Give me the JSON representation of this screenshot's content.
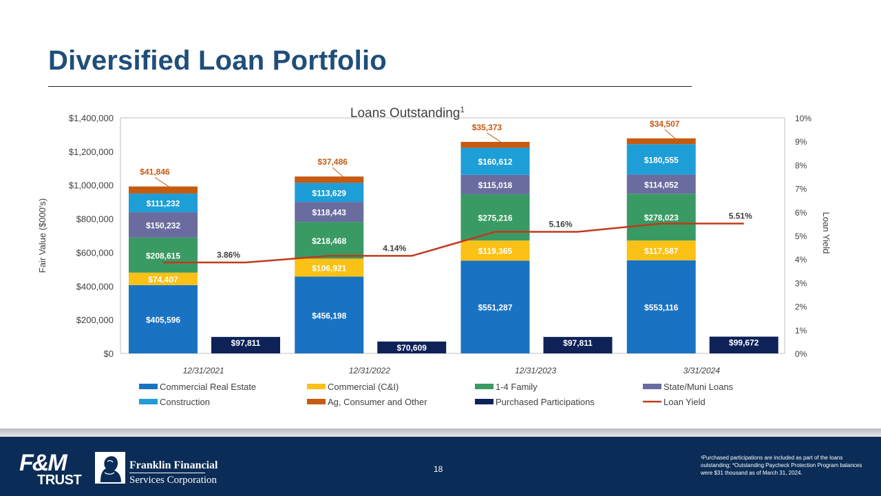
{
  "title": "Diversified Loan Portfolio",
  "page_number": "18",
  "footnote": "¹Purchased participations are included as part of the loans outstanding; *Outstanding Paycheck Protection Program balances were $31 thousand as of March 31, 2024.",
  "logo": {
    "fm_top": "F&M",
    "fm_bottom": "TRUST",
    "company_line1": "Franklin Financial",
    "company_line2": "Services Corporation"
  },
  "colors": {
    "title": "#1f4e79",
    "footer": "#0b2c56"
  },
  "chart_data": {
    "type": "bar",
    "title": "Loans Outstanding",
    "title_superscript": "1",
    "ylabel": "Fair Value ($000's)",
    "y2label": "Loan Yield",
    "ylim": [
      0,
      1400000
    ],
    "y2lim": [
      0,
      10
    ],
    "yticks": [
      "$0",
      "$200,000",
      "$400,000",
      "$600,000",
      "$800,000",
      "$1,000,000",
      "$1,200,000",
      "$1,400,000"
    ],
    "y2ticks": [
      "0%",
      "1%",
      "2%",
      "3%",
      "4%",
      "5%",
      "6%",
      "7%",
      "8%",
      "9%",
      "10%"
    ],
    "categories": [
      "12/31/2021",
      "12/31/2022",
      "12/31/2023",
      "3/31/2024"
    ],
    "stack_series": [
      {
        "name": "Commercial Real Estate",
        "color": "#1a73c2",
        "values": [
          405596,
          456198,
          551287,
          553116
        ],
        "labels": [
          "$405,596",
          "$456,198",
          "$551,287",
          "$553,116"
        ]
      },
      {
        "name": "Commercial (C&I)",
        "color": "#fbc116",
        "values": [
          74407,
          106921,
          119365,
          117587
        ],
        "labels": [
          "$74,407",
          "$106,921",
          "$119,365",
          "$117,587"
        ]
      },
      {
        "name": "1-4 Family",
        "color": "#3a9a63",
        "values": [
          208615,
          218468,
          275216,
          278023
        ],
        "labels": [
          "$208,615",
          "$218,468",
          "$275,216",
          "$278,023"
        ]
      },
      {
        "name": "State/Muni Loans",
        "color": "#6a6c9f",
        "values": [
          150232,
          118443,
          115018,
          114052
        ],
        "labels": [
          "$150,232",
          "$118,443",
          "$115,018",
          "$114,052"
        ]
      },
      {
        "name": "Construction",
        "color": "#1e9ed6",
        "values": [
          111232,
          113629,
          160612,
          180555
        ],
        "labels": [
          "$111,232",
          "$113,629",
          "$160,612",
          "$180,555"
        ]
      },
      {
        "name": "Ag, Consumer and Other",
        "color": "#c55a11",
        "values": [
          41846,
          37486,
          35373,
          34507
        ],
        "labels": [
          "$41,846",
          "$37,486",
          "$35,373",
          "$34,507"
        ]
      }
    ],
    "participations": {
      "name": "Purchased Participations",
      "color": "#0e2258",
      "values": [
        97811,
        70609,
        97811,
        99672
      ],
      "labels": [
        "$97,811",
        "$70,609",
        "$97,811",
        "$99,672"
      ]
    },
    "loan_yield": {
      "name": "Loan Yield",
      "color": "#c0391b",
      "values": [
        3.86,
        4.14,
        5.16,
        5.51
      ],
      "labels": [
        "3.86%",
        "4.14%",
        "5.16%",
        "5.51%"
      ]
    },
    "legend": [
      {
        "name": "Commercial Real Estate",
        "color": "#1a73c2",
        "kind": "box"
      },
      {
        "name": "Commercial (C&I)",
        "color": "#fbc116",
        "kind": "box"
      },
      {
        "name": "1-4 Family",
        "color": "#3a9a63",
        "kind": "box"
      },
      {
        "name": "State/Muni Loans",
        "color": "#6a6c9f",
        "kind": "box"
      },
      {
        "name": "Construction",
        "color": "#1e9ed6",
        "kind": "box"
      },
      {
        "name": "Ag, Consumer and Other",
        "color": "#c55a11",
        "kind": "box"
      },
      {
        "name": "Purchased Participations",
        "color": "#0e2258",
        "kind": "box"
      },
      {
        "name": "Loan Yield",
        "color": "#c0391b",
        "kind": "line"
      }
    ]
  }
}
